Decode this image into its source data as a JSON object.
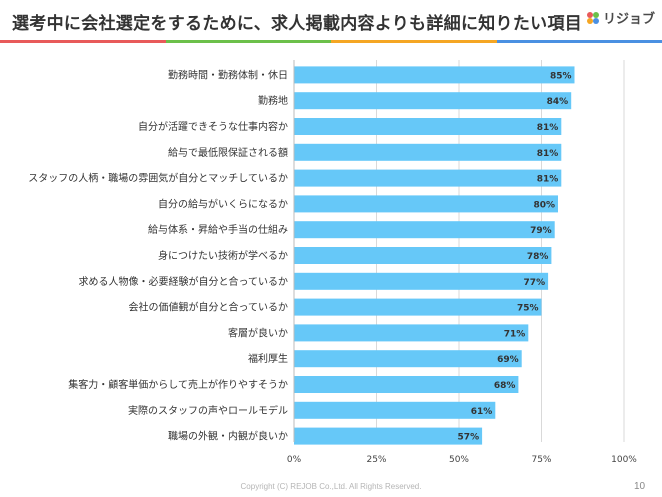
{
  "header": {
    "title": "選考中に会社選定をするために、求人掲載内容よりも詳細に知りたい項目",
    "logo_text": "リジョブ",
    "accent_colors": [
      "#e85a5a",
      "#6cc04a",
      "#f5a623",
      "#4a90e2"
    ]
  },
  "chart_data": {
    "type": "bar",
    "orientation": "horizontal",
    "categories": [
      "勤務時間・勤務体制・休日",
      "勤務地",
      "自分が活躍できそうな仕事内容か",
      "給与で最低限保証される額",
      "スタッフの人柄・職場の雰囲気が自分とマッチしているか",
      "自分の給与がいくらになるか",
      "給与体系・昇給や手当の仕組み",
      "身につけたい技術が学べるか",
      "求める人物像・必要経験が自分と合っているか",
      "会社の価値観が自分と合っているか",
      "客層が良いか",
      "福利厚生",
      "集客力・顧客単価からして売上が作りやすそうか",
      "実際のスタッフの声やロールモデル",
      "職場の外観・内観が良いか"
    ],
    "values": [
      85,
      84,
      81,
      81,
      81,
      80,
      79,
      78,
      77,
      75,
      71,
      69,
      68,
      61,
      57
    ],
    "value_labels": [
      "85%",
      "84%",
      "81%",
      "81%",
      "81%",
      "80%",
      "79%",
      "78%",
      "77%",
      "75%",
      "71%",
      "69%",
      "68%",
      "61%",
      "57%"
    ],
    "xlim": [
      0,
      100
    ],
    "xticks": [
      0,
      25,
      50,
      75,
      100
    ],
    "xtick_labels": [
      "0%",
      "25%",
      "50%",
      "75%",
      "100%"
    ],
    "bar_color": "#66c8f8",
    "grid": true
  },
  "footer": {
    "copyright": "Copyright (C) REJOB Co.,Ltd. All Rights Reserved.",
    "page_number": "10"
  }
}
